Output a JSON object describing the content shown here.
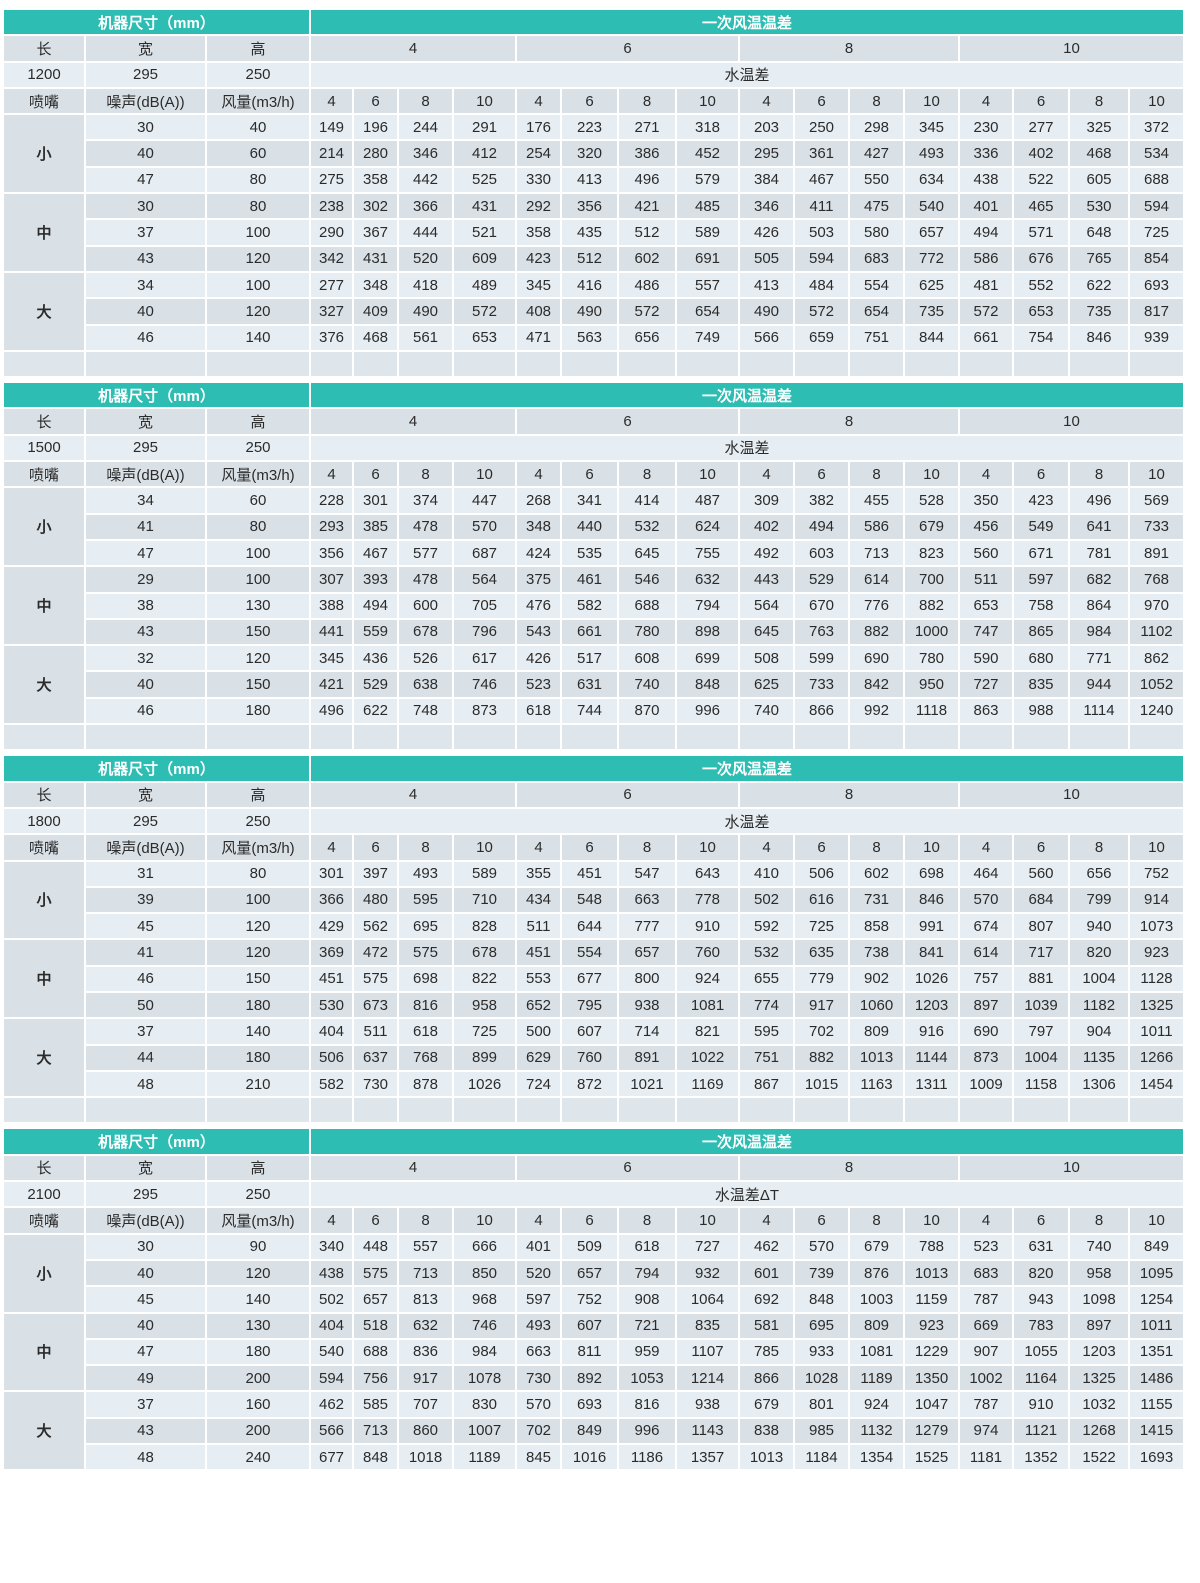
{
  "labels": {
    "size_header": "机器尺寸（mm）",
    "airdiff_header": "一次风温温差",
    "length": "长",
    "width": "宽",
    "height": "高",
    "nozzle": "喷嘴",
    "noise": "噪声(dB(A))",
    "airflow": "风量(m3/h)",
    "air_deltas": [
      "4",
      "6",
      "8",
      "10"
    ],
    "water_deltas": [
      "4",
      "6",
      "8",
      "10",
      "4",
      "6",
      "8",
      "10",
      "4",
      "6",
      "8",
      "10",
      "4",
      "6",
      "8",
      "10"
    ]
  },
  "colors": {
    "header": "#2ebdb3",
    "cell_light": "#e7eef3",
    "cell_dark": "#d9e1e7"
  },
  "tables": [
    {
      "length": "1200",
      "width": "295",
      "height": "250",
      "water_label": "水温差",
      "blank_row": true,
      "groups": [
        "小",
        "中",
        "大"
      ],
      "rows": [
        {
          "noise": "30",
          "air": "40",
          "values": [
            149,
            196,
            244,
            291,
            176,
            223,
            271,
            318,
            203,
            250,
            298,
            345,
            230,
            277,
            325,
            372
          ]
        },
        {
          "noise": "40",
          "air": "60",
          "values": [
            214,
            280,
            346,
            412,
            254,
            320,
            386,
            452,
            295,
            361,
            427,
            493,
            336,
            402,
            468,
            534
          ]
        },
        {
          "noise": "47",
          "air": "80",
          "values": [
            275,
            358,
            442,
            525,
            330,
            413,
            496,
            579,
            384,
            467,
            550,
            634,
            438,
            522,
            605,
            688
          ]
        },
        {
          "noise": "30",
          "air": "80",
          "values": [
            238,
            302,
            366,
            431,
            292,
            356,
            421,
            485,
            346,
            411,
            475,
            540,
            401,
            465,
            530,
            594
          ]
        },
        {
          "noise": "37",
          "air": "100",
          "values": [
            290,
            367,
            444,
            521,
            358,
            435,
            512,
            589,
            426,
            503,
            580,
            657,
            494,
            571,
            648,
            725
          ]
        },
        {
          "noise": "43",
          "air": "120",
          "values": [
            342,
            431,
            520,
            609,
            423,
            512,
            602,
            691,
            505,
            594,
            683,
            772,
            586,
            676,
            765,
            854
          ]
        },
        {
          "noise": "34",
          "air": "100",
          "values": [
            277,
            348,
            418,
            489,
            345,
            416,
            486,
            557,
            413,
            484,
            554,
            625,
            481,
            552,
            622,
            693
          ]
        },
        {
          "noise": "40",
          "air": "120",
          "values": [
            327,
            409,
            490,
            572,
            408,
            490,
            572,
            654,
            490,
            572,
            654,
            735,
            572,
            653,
            735,
            817
          ]
        },
        {
          "noise": "46",
          "air": "140",
          "values": [
            376,
            468,
            561,
            653,
            471,
            563,
            656,
            749,
            566,
            659,
            751,
            844,
            661,
            754,
            846,
            939
          ]
        }
      ]
    },
    {
      "length": "1500",
      "width": "295",
      "height": "250",
      "water_label": "水温差",
      "blank_row": true,
      "groups": [
        "小",
        "中",
        "大"
      ],
      "rows": [
        {
          "noise": "34",
          "air": "60",
          "values": [
            228,
            301,
            374,
            447,
            268,
            341,
            414,
            487,
            309,
            382,
            455,
            528,
            350,
            423,
            496,
            569
          ]
        },
        {
          "noise": "41",
          "air": "80",
          "values": [
            293,
            385,
            478,
            570,
            348,
            440,
            532,
            624,
            402,
            494,
            586,
            679,
            456,
            549,
            641,
            733
          ]
        },
        {
          "noise": "47",
          "air": "100",
          "values": [
            356,
            467,
            577,
            687,
            424,
            535,
            645,
            755,
            492,
            603,
            713,
            823,
            560,
            671,
            781,
            891
          ]
        },
        {
          "noise": "29",
          "air": "100",
          "values": [
            307,
            393,
            478,
            564,
            375,
            461,
            546,
            632,
            443,
            529,
            614,
            700,
            511,
            597,
            682,
            768
          ]
        },
        {
          "noise": "38",
          "air": "130",
          "values": [
            388,
            494,
            600,
            705,
            476,
            582,
            688,
            794,
            564,
            670,
            776,
            882,
            653,
            758,
            864,
            970
          ]
        },
        {
          "noise": "43",
          "air": "150",
          "values": [
            441,
            559,
            678,
            796,
            543,
            661,
            780,
            898,
            645,
            763,
            882,
            1000,
            747,
            865,
            984,
            1102
          ]
        },
        {
          "noise": "32",
          "air": "120",
          "values": [
            345,
            436,
            526,
            617,
            426,
            517,
            608,
            699,
            508,
            599,
            690,
            780,
            590,
            680,
            771,
            862
          ]
        },
        {
          "noise": "40",
          "air": "150",
          "values": [
            421,
            529,
            638,
            746,
            523,
            631,
            740,
            848,
            625,
            733,
            842,
            950,
            727,
            835,
            944,
            1052
          ]
        },
        {
          "noise": "46",
          "air": "180",
          "values": [
            496,
            622,
            748,
            873,
            618,
            744,
            870,
            996,
            740,
            866,
            992,
            1118,
            863,
            988,
            1114,
            1240
          ]
        }
      ]
    },
    {
      "length": "1800",
      "width": "295",
      "height": "250",
      "water_label": "水温差",
      "blank_row": true,
      "groups": [
        "小",
        "中",
        "大"
      ],
      "rows": [
        {
          "noise": "31",
          "air": "80",
          "values": [
            301,
            397,
            493,
            589,
            355,
            451,
            547,
            643,
            410,
            506,
            602,
            698,
            464,
            560,
            656,
            752
          ]
        },
        {
          "noise": "39",
          "air": "100",
          "values": [
            366,
            480,
            595,
            710,
            434,
            548,
            663,
            778,
            502,
            616,
            731,
            846,
            570,
            684,
            799,
            914
          ]
        },
        {
          "noise": "45",
          "air": "120",
          "values": [
            429,
            562,
            695,
            828,
            511,
            644,
            777,
            910,
            592,
            725,
            858,
            991,
            674,
            807,
            940,
            1073
          ]
        },
        {
          "noise": "41",
          "air": "120",
          "values": [
            369,
            472,
            575,
            678,
            451,
            554,
            657,
            760,
            532,
            635,
            738,
            841,
            614,
            717,
            820,
            923
          ]
        },
        {
          "noise": "46",
          "air": "150",
          "values": [
            451,
            575,
            698,
            822,
            553,
            677,
            800,
            924,
            655,
            779,
            902,
            1026,
            757,
            881,
            1004,
            1128
          ]
        },
        {
          "noise": "50",
          "air": "180",
          "values": [
            530,
            673,
            816,
            958,
            652,
            795,
            938,
            1081,
            774,
            917,
            1060,
            1203,
            897,
            1039,
            1182,
            1325
          ]
        },
        {
          "noise": "37",
          "air": "140",
          "values": [
            404,
            511,
            618,
            725,
            500,
            607,
            714,
            821,
            595,
            702,
            809,
            916,
            690,
            797,
            904,
            1011
          ]
        },
        {
          "noise": "44",
          "air": "180",
          "values": [
            506,
            637,
            768,
            899,
            629,
            760,
            891,
            1022,
            751,
            882,
            1013,
            1144,
            873,
            1004,
            1135,
            1266
          ]
        },
        {
          "noise": "48",
          "air": "210",
          "values": [
            582,
            730,
            878,
            1026,
            724,
            872,
            1021,
            1169,
            867,
            1015,
            1163,
            1311,
            1009,
            1158,
            1306,
            1454
          ]
        }
      ]
    },
    {
      "length": "2100",
      "width": "295",
      "height": "250",
      "water_label": "水温差ΔT",
      "blank_row": false,
      "groups": [
        "小",
        "中",
        "大"
      ],
      "rows": [
        {
          "noise": "30",
          "air": "90",
          "values": [
            340,
            448,
            557,
            666,
            401,
            509,
            618,
            727,
            462,
            570,
            679,
            788,
            523,
            631,
            740,
            849
          ]
        },
        {
          "noise": "40",
          "air": "120",
          "values": [
            438,
            575,
            713,
            850,
            520,
            657,
            794,
            932,
            601,
            739,
            876,
            1013,
            683,
            820,
            958,
            1095
          ]
        },
        {
          "noise": "45",
          "air": "140",
          "values": [
            502,
            657,
            813,
            968,
            597,
            752,
            908,
            1064,
            692,
            848,
            1003,
            1159,
            787,
            943,
            1098,
            1254
          ]
        },
        {
          "noise": "40",
          "air": "130",
          "values": [
            404,
            518,
            632,
            746,
            493,
            607,
            721,
            835,
            581,
            695,
            809,
            923,
            669,
            783,
            897,
            1011
          ]
        },
        {
          "noise": "47",
          "air": "180",
          "values": [
            540,
            688,
            836,
            984,
            663,
            811,
            959,
            1107,
            785,
            933,
            1081,
            1229,
            907,
            1055,
            1203,
            1351
          ]
        },
        {
          "noise": "49",
          "air": "200",
          "values": [
            594,
            756,
            917,
            1078,
            730,
            892,
            1053,
            1214,
            866,
            1028,
            1189,
            1350,
            1002,
            1164,
            1325,
            1486
          ]
        },
        {
          "noise": "37",
          "air": "160",
          "values": [
            462,
            585,
            707,
            830,
            570,
            693,
            816,
            938,
            679,
            801,
            924,
            1047,
            787,
            910,
            1032,
            1155
          ]
        },
        {
          "noise": "43",
          "air": "200",
          "values": [
            566,
            713,
            860,
            1007,
            702,
            849,
            996,
            1143,
            838,
            985,
            1132,
            1279,
            974,
            1121,
            1268,
            1415
          ]
        },
        {
          "noise": "48",
          "air": "240",
          "values": [
            677,
            848,
            1018,
            1189,
            845,
            1016,
            1186,
            1357,
            1013,
            1184,
            1354,
            1525,
            1181,
            1352,
            1522,
            1693
          ]
        }
      ]
    }
  ]
}
